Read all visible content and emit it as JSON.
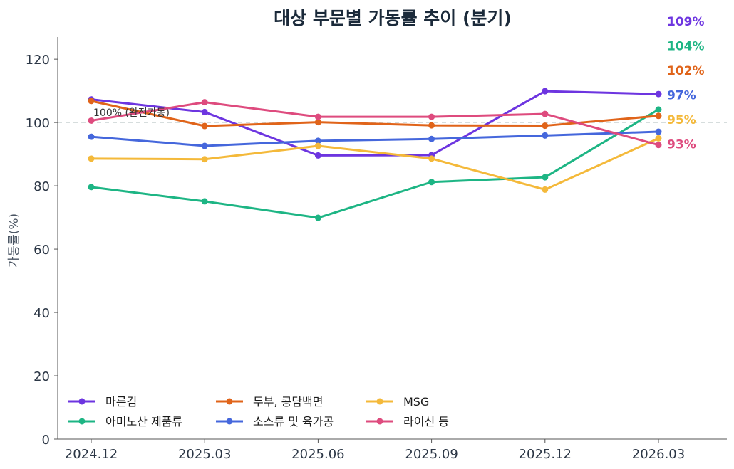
{
  "chart_data": {
    "type": "line",
    "title": "대상 부문별 가동률 추이 (분기)",
    "ylabel": "가동률(%)",
    "xlabel": "",
    "ylim": [
      0,
      127
    ],
    "yticks": [
      0,
      20,
      40,
      60,
      80,
      100,
      120
    ],
    "x": [
      "2024.12",
      "2025.03",
      "2025.06",
      "2025.09",
      "2025.12",
      "2026.03"
    ],
    "reference_line": {
      "value": 100,
      "label": "100% (완전가동)"
    },
    "series": [
      {
        "name": "마른김",
        "color": "#6d35e0",
        "values": [
          107.3,
          103.3,
          89.6,
          89.7,
          109.9,
          109.0
        ],
        "end_label": "109%"
      },
      {
        "name": "아미노산 제품류",
        "color": "#1db584",
        "values": [
          79.6,
          75.1,
          69.9,
          81.2,
          82.7,
          104.1
        ],
        "end_label": "104%"
      },
      {
        "name": "두부, 콩담백면",
        "color": "#e0641a",
        "values": [
          106.8,
          98.9,
          100.1,
          99.1,
          99.0,
          102.1
        ],
        "end_label": "102%"
      },
      {
        "name": "소스류 및 육가공",
        "color": "#4567dc",
        "values": [
          95.5,
          92.6,
          94.2,
          94.8,
          95.9,
          97.1
        ],
        "end_label": "97%"
      },
      {
        "name": "MSG",
        "color": "#f4b93a",
        "values": [
          88.6,
          88.4,
          92.6,
          88.6,
          78.8,
          95.0
        ],
        "end_label": "95%"
      },
      {
        "name": "라이신 등",
        "color": "#de4b7e",
        "values": [
          100.6,
          106.4,
          101.8,
          101.8,
          102.7,
          92.9
        ],
        "end_label": "93%"
      }
    ],
    "legend_position": "lower-left",
    "grid": false
  }
}
